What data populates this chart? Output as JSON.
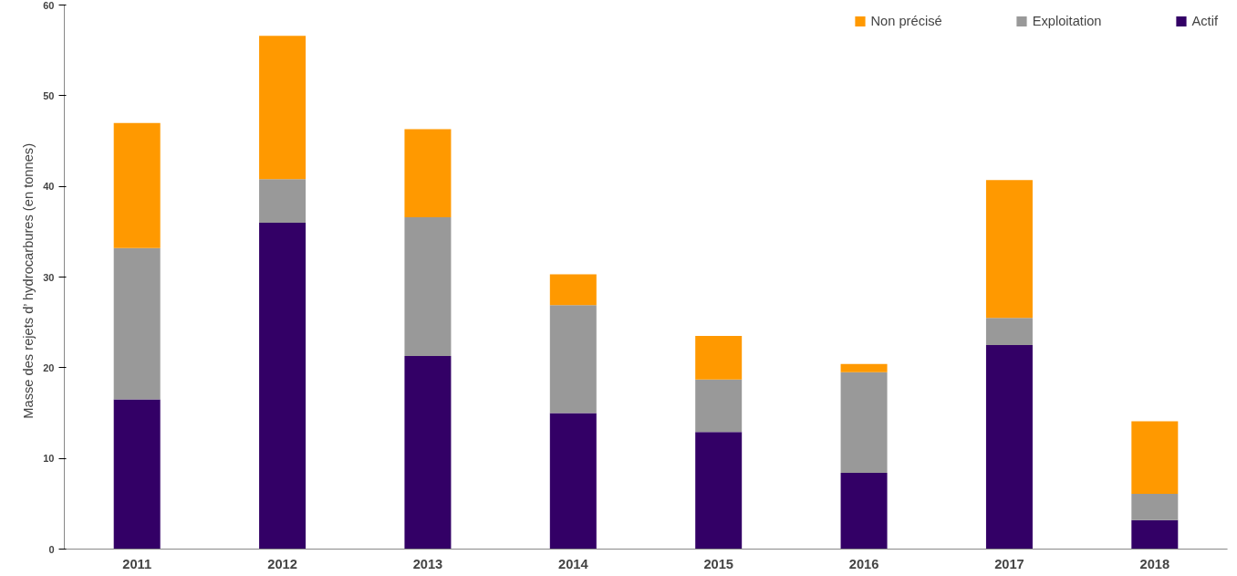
{
  "chart_data": {
    "type": "bar",
    "stacked": true,
    "ylabel": "Masse des rejets d’   hydrocarbures (en tonnes)",
    "categories": [
      "2011",
      "2012",
      "2013",
      "2014",
      "2015",
      "2016",
      "2017",
      "2018"
    ],
    "series": [
      {
        "name": "Actif",
        "color": "#330066",
        "values": [
          16.5,
          36.0,
          21.3,
          15.0,
          12.9,
          8.4,
          22.5,
          3.2
        ]
      },
      {
        "name": "Exploitation",
        "color": "#999999",
        "values": [
          16.7,
          4.8,
          15.3,
          11.9,
          5.8,
          11.1,
          3.0,
          2.9
        ]
      },
      {
        "name": "Non précisé",
        "color": "#ff9900",
        "values": [
          13.8,
          15.8,
          9.7,
          3.4,
          4.8,
          0.9,
          15.2,
          8.0
        ]
      }
    ],
    "ylim": [
      0,
      60
    ],
    "yticks": [
      0,
      10,
      20,
      30,
      40,
      50,
      60
    ],
    "grid": false,
    "legend": "top right"
  }
}
